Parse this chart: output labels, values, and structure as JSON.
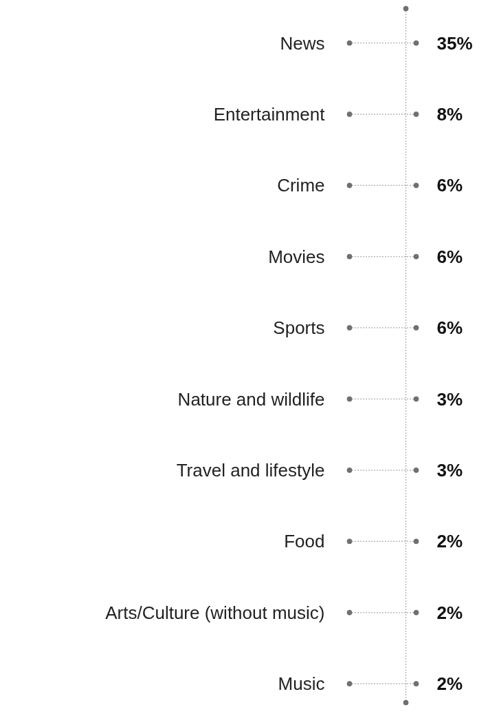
{
  "chart_data": {
    "type": "other",
    "categories": [
      "News",
      "Entertainment",
      "Crime",
      "Movies",
      "Sports",
      "Nature and wildlife",
      "Travel and lifestyle",
      "Food",
      "Arts/Culture (without music)",
      "Music"
    ],
    "values": [
      35,
      8,
      6,
      6,
      6,
      3,
      3,
      2,
      2,
      2
    ],
    "value_labels": [
      "35%",
      "8%",
      "6%",
      "6%",
      "6%",
      "3%",
      "3%",
      "2%",
      "2%",
      "2%"
    ],
    "color": "#707070"
  }
}
